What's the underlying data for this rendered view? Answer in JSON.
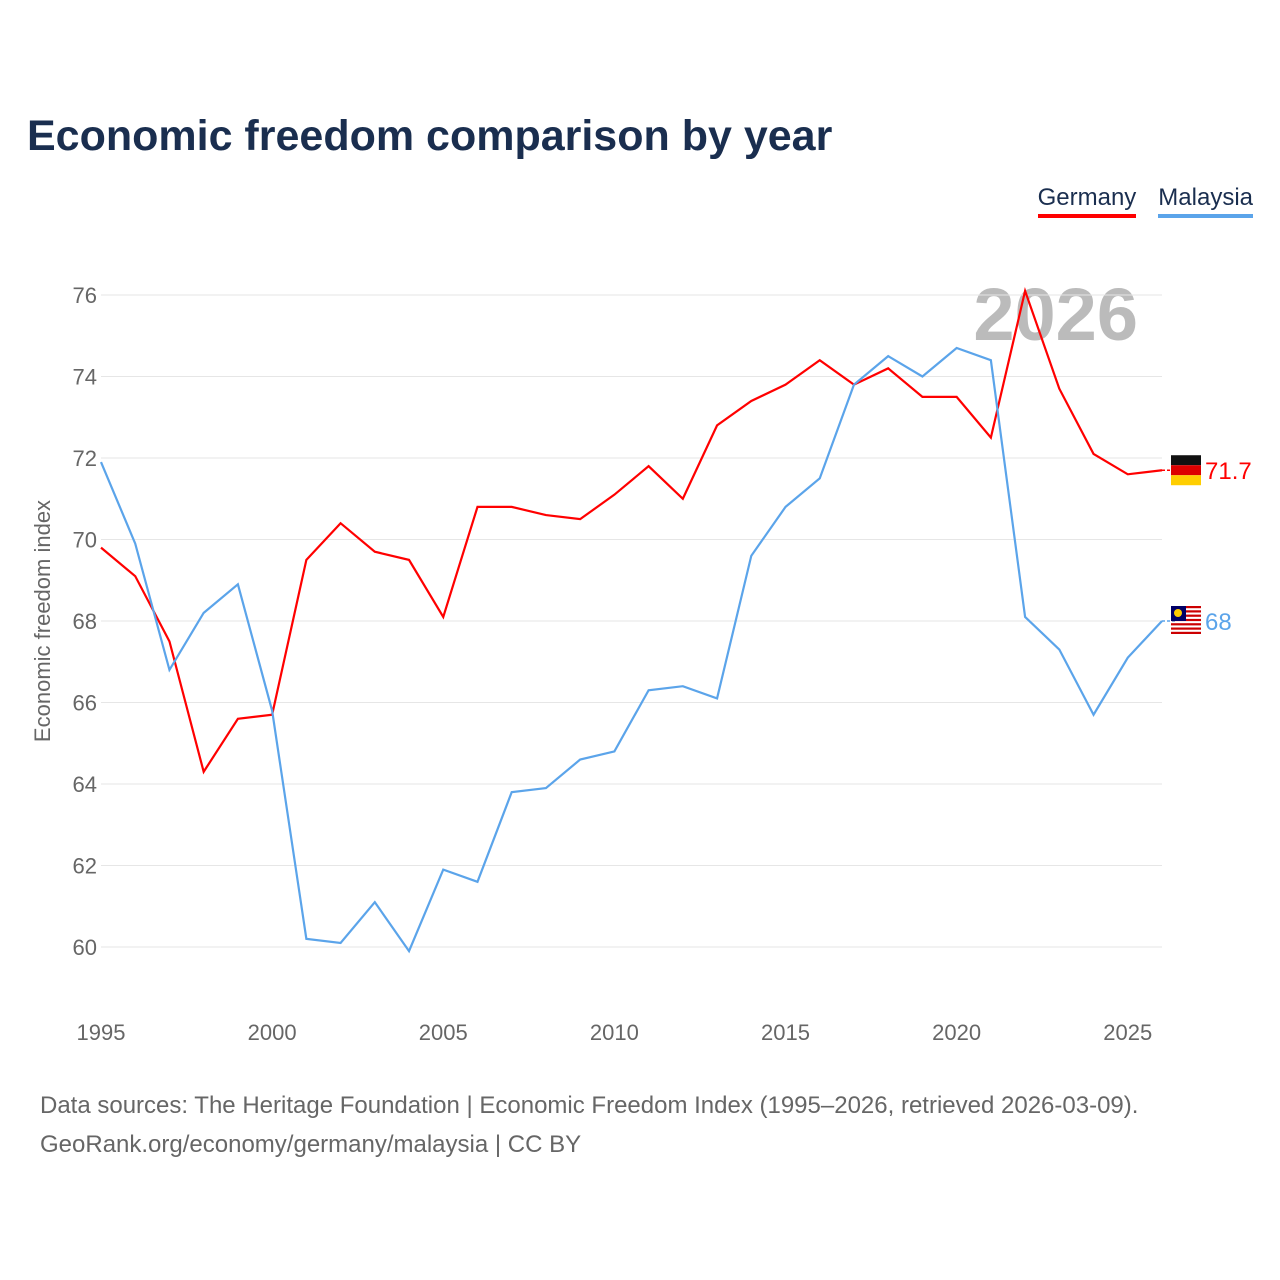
{
  "title": "Economic freedom comparison by year",
  "footer": {
    "line1": "Data sources: The Heritage Foundation | Economic Freedom Index (1995–2026, retrieved 2026-03-09).",
    "line2": "GeoRank.org/economy/germany/malaysia | CC BY"
  },
  "chart_data": {
    "type": "line",
    "title": "Economic freedom comparison by year",
    "xlabel": "",
    "ylabel": "Economic freedom index",
    "watermark_year": "2026",
    "x": [
      1995,
      1996,
      1997,
      1998,
      1999,
      2000,
      2001,
      2002,
      2003,
      2004,
      2005,
      2006,
      2007,
      2008,
      2009,
      2010,
      2011,
      2012,
      2013,
      2014,
      2015,
      2016,
      2017,
      2018,
      2019,
      2020,
      2021,
      2022,
      2023,
      2024,
      2025,
      2026
    ],
    "xticks": [
      1995,
      2000,
      2005,
      2010,
      2015,
      2020,
      2025
    ],
    "yticks": [
      60,
      62,
      64,
      66,
      68,
      70,
      72,
      74,
      76
    ],
    "xlim": [
      1995,
      2026
    ],
    "ylim": [
      58.5,
      77
    ],
    "grid": true,
    "legend_position": "top-right",
    "series": [
      {
        "name": "Germany",
        "color": "#ff0000",
        "end_label": "71.7",
        "values": [
          69.8,
          69.1,
          67.5,
          64.3,
          65.6,
          65.7,
          69.5,
          70.4,
          69.7,
          69.5,
          68.1,
          70.8,
          70.8,
          70.6,
          70.5,
          71.1,
          71.8,
          71.0,
          72.8,
          73.4,
          73.8,
          74.4,
          73.8,
          74.2,
          73.5,
          73.5,
          72.5,
          76.1,
          73.7,
          72.1,
          71.6,
          71.7
        ]
      },
      {
        "name": "Malaysia",
        "color": "#5ba4ea",
        "end_label": "68",
        "values": [
          71.9,
          69.9,
          66.8,
          68.2,
          68.9,
          65.8,
          60.2,
          60.1,
          61.1,
          59.9,
          61.9,
          61.6,
          63.8,
          63.9,
          64.6,
          64.8,
          66.3,
          66.4,
          66.1,
          69.6,
          70.8,
          71.5,
          73.8,
          74.5,
          74.0,
          74.7,
          74.4,
          68.1,
          67.3,
          65.7,
          67.1,
          68.0
        ]
      }
    ]
  }
}
